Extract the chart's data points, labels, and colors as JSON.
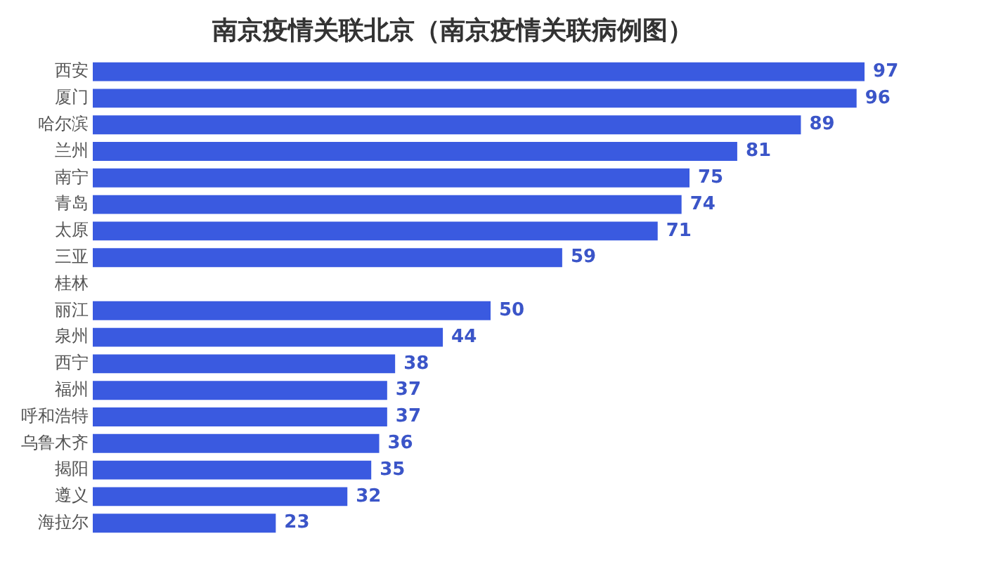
{
  "chart_data": {
    "type": "bar",
    "orientation": "horizontal",
    "title": "南京疫情关联北京（南京疫情关联病例图）",
    "categories": [
      "西安",
      "厦门",
      "哈尔滨",
      "兰州",
      "南宁",
      "青岛",
      "太原",
      "三亚",
      "桂林",
      "丽江",
      "泉州",
      "西宁",
      "福州",
      "呼和浩特",
      "乌鲁木齐",
      "揭阳",
      "遵义",
      "海拉尔"
    ],
    "values": [
      97,
      96,
      89,
      81,
      75,
      74,
      71,
      59,
      null,
      50,
      44,
      38,
      37,
      37,
      36,
      35,
      32,
      23
    ],
    "value_labels": [
      "97",
      "96",
      "89",
      "81",
      "75",
      "74",
      "71",
      "59",
      null,
      "50",
      "44",
      "38",
      "37",
      "37",
      "36",
      "35",
      "32",
      "23"
    ],
    "color": "#3a5ae0",
    "grid": false,
    "legend": false
  }
}
